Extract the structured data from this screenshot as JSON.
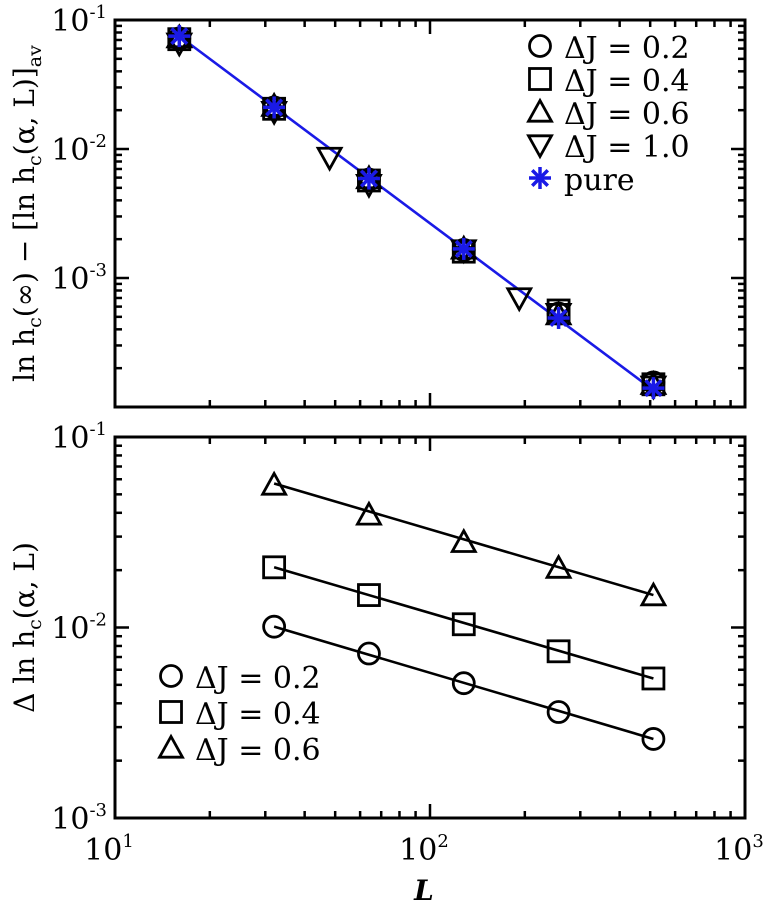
{
  "chart_data": [
    {
      "type": "scatter",
      "xlabel": "",
      "ylabel": "ln h_c(∞) − [ln h_c(α, L)]_av",
      "ylabel_parts": {
        "main": "ln h",
        "sub1": "c",
        "mid": "(∞) − [ln h",
        "sub2": "c",
        "tail": "(α, L)]",
        "sub3": "av"
      },
      "xscale": "log",
      "yscale": "log",
      "xlim": [
        10,
        1000
      ],
      "ylim": [
        0.0001,
        0.1
      ],
      "y_ticks": [
        {
          "base": "10",
          "exp": "-1",
          "value": 0.1
        },
        {
          "base": "10",
          "exp": "-2",
          "value": 0.01
        },
        {
          "base": "10",
          "exp": "-3",
          "value": 0.001
        }
      ],
      "legend_position": "top-right",
      "series": [
        {
          "name": "ΔJ = 0.2",
          "marker": "circle",
          "x": [
            16,
            32,
            64,
            128,
            256,
            512
          ],
          "y": [
            0.072,
            0.021,
            0.0058,
            0.00165,
            0.00053,
            0.000155
          ]
        },
        {
          "name": "ΔJ = 0.4",
          "marker": "square",
          "x": [
            16,
            32,
            64,
            128,
            256,
            512
          ],
          "y": [
            0.071,
            0.0205,
            0.0057,
            0.0016,
            0.00056,
            0.00015
          ]
        },
        {
          "name": "ΔJ = 0.6",
          "marker": "triangle-up",
          "x": [
            16,
            32,
            64,
            128,
            256,
            512
          ],
          "y": [
            0.073,
            0.0215,
            0.0059,
            0.00168,
            0.00052,
            0.00015
          ]
        },
        {
          "name": "ΔJ = 1.0",
          "marker": "triangle-down",
          "x": [
            16,
            32,
            48,
            64,
            128,
            192,
            256,
            512
          ],
          "y": [
            0.066,
            0.0195,
            0.0086,
            0.0053,
            0.00165,
            0.0007,
            0.00053,
            0.000145
          ]
        },
        {
          "name": "pure",
          "marker": "asterisk",
          "color": "#1a1ae6",
          "x": [
            16,
            32,
            64,
            128,
            256,
            512
          ],
          "y": [
            0.075,
            0.021,
            0.0059,
            0.00168,
            0.00049,
            0.00014
          ]
        }
      ],
      "fit_lines": [
        {
          "color": "#1a1ae6",
          "x": [
            16,
            512
          ],
          "y": [
            0.075,
            0.000135
          ]
        }
      ]
    },
    {
      "type": "scatter",
      "xlabel": "L",
      "ylabel": "Δ ln h_c(α, L)",
      "ylabel_parts": {
        "main": "Δ ln h",
        "sub1": "c",
        "tail": "(α, L)"
      },
      "xscale": "log",
      "yscale": "log",
      "xlim": [
        10,
        1000
      ],
      "ylim": [
        0.001,
        0.1
      ],
      "x_ticks": [
        {
          "base": "10",
          "exp": "1",
          "value": 10
        },
        {
          "base": "10",
          "exp": "2",
          "value": 100
        },
        {
          "base": "10",
          "exp": "3",
          "value": 1000
        }
      ],
      "y_ticks": [
        {
          "base": "10",
          "exp": "-1",
          "value": 0.1
        },
        {
          "base": "10",
          "exp": "-2",
          "value": 0.01
        },
        {
          "base": "10",
          "exp": "-3",
          "value": 0.001
        }
      ],
      "legend_position": "bottom-left",
      "series": [
        {
          "name": "ΔJ = 0.2",
          "marker": "circle",
          "x": [
            32,
            64,
            128,
            256,
            512
          ],
          "y": [
            0.0101,
            0.0073,
            0.0051,
            0.0036,
            0.0026
          ]
        },
        {
          "name": "ΔJ = 0.4",
          "marker": "square",
          "x": [
            32,
            64,
            128,
            256,
            512
          ],
          "y": [
            0.0207,
            0.0148,
            0.0104,
            0.0075,
            0.0054
          ]
        },
        {
          "name": "ΔJ = 0.6",
          "marker": "triangle-up",
          "x": [
            32,
            64,
            128,
            256,
            512
          ],
          "y": [
            0.056,
            0.039,
            0.028,
            0.0205,
            0.0147
          ]
        }
      ],
      "fit_lines": [
        {
          "color": "#000000",
          "x": [
            32,
            512
          ],
          "y": [
            0.0101,
            0.0026
          ]
        },
        {
          "color": "#000000",
          "x": [
            32,
            512
          ],
          "y": [
            0.0207,
            0.0054
          ]
        },
        {
          "color": "#000000",
          "x": [
            32,
            512
          ],
          "y": [
            0.057,
            0.0148
          ]
        }
      ]
    }
  ]
}
